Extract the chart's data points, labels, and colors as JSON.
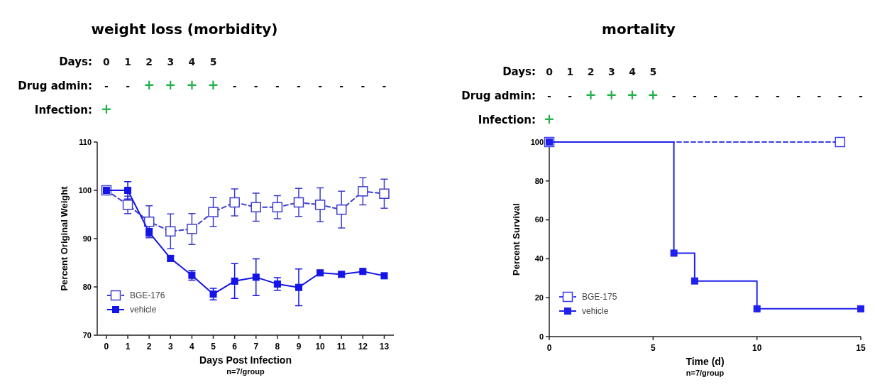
{
  "chart_data": [
    {
      "type": "line",
      "title": "weight loss (morbidity)",
      "xlabel": "Days Post Infection",
      "ylabel": "Percent Original Weight",
      "x": [
        0,
        1,
        2,
        3,
        4,
        5,
        6,
        7,
        8,
        9,
        10,
        11,
        12,
        13
      ],
      "series": [
        {
          "name": "BGE-176",
          "color": "#3d3dcf",
          "line_style": "dashed",
          "values": [
            100,
            97,
            93.5,
            91.5,
            92,
            95.5,
            97.5,
            96.5,
            96.5,
            97.5,
            97,
            96,
            99.8,
            99.3
          ],
          "errors": [
            null,
            1.8,
            3.3,
            3.6,
            3.2,
            3,
            2.8,
            2.9,
            2.4,
            2.9,
            3.5,
            3.8,
            2.8,
            3
          ]
        },
        {
          "name": "vehicle",
          "color": "#1414e6",
          "line_style": "solid",
          "values": [
            100,
            100,
            91.3,
            85.9,
            82.4,
            78.5,
            81.2,
            82,
            80.6,
            79.9,
            82.9,
            82.6,
            83.2,
            82.3
          ],
          "errors": [
            null,
            1.8,
            0.8,
            0.5,
            1,
            1.2,
            3.6,
            3.8,
            1.3,
            3.8,
            null,
            null,
            null,
            null
          ]
        }
      ],
      "xlim": [
        -0.43,
        13.45
      ],
      "xticks": [
        0,
        1,
        2,
        3,
        4,
        5,
        6,
        7,
        8,
        9,
        10,
        11,
        12,
        13
      ],
      "ylim": [
        70,
        110
      ],
      "yticks": [
        70,
        80,
        90,
        100,
        110
      ],
      "marker": "square",
      "legend": "bottom left",
      "grid": false,
      "annotations": [
        "Days: 0 1 2 3 4 5",
        "Drug admin: - - + + + + - - - - - - - -",
        "Infection: +",
        "n=7/group"
      ]
    },
    {
      "type": "step",
      "title": "mortality",
      "xlabel": "Time (d)",
      "ylabel": "Percent Survival",
      "series": [
        {
          "name": "BGE-175",
          "color": "#3b3bf0",
          "line_style": "dashed",
          "x": [
            0,
            14
          ],
          "values": [
            100,
            100
          ]
        },
        {
          "name": "vehicle",
          "color": "#2020ee",
          "line_style": "solid",
          "x": [
            0,
            6,
            7,
            10,
            15
          ],
          "values": [
            100,
            42.9,
            28.6,
            14.3,
            14.3
          ]
        }
      ],
      "xlim": [
        0,
        15
      ],
      "xticks": [
        0,
        5,
        10,
        15
      ],
      "ylim": [
        0,
        100
      ],
      "yticks": [
        0,
        20,
        40,
        60,
        80,
        100
      ],
      "marker": "square",
      "legend": "bottom left",
      "grid": false,
      "annotations": [
        "Days: 0 1 2 3 4 5",
        "Drug admin: - - + + + + - - - - - - - - - -",
        "Infection: +",
        "n=7/group"
      ]
    }
  ]
}
